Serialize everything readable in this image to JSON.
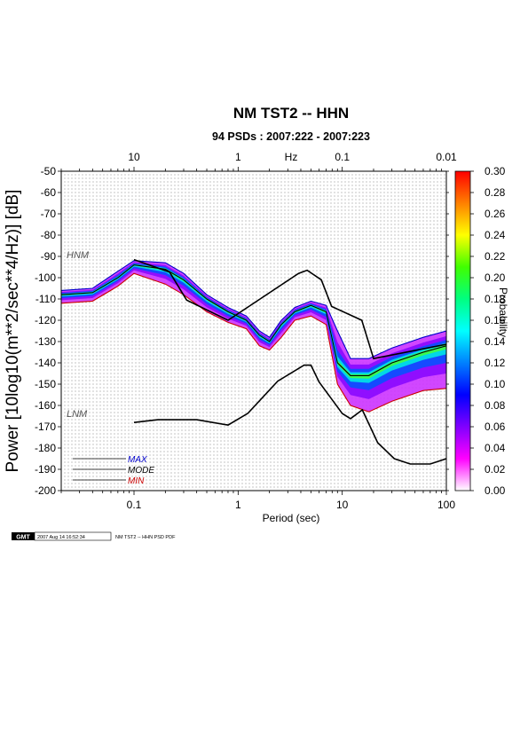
{
  "chart_data": {
    "type": "heatmap",
    "title": "NM TST2 -- HHN",
    "subtitle": "94 PSDs : 2007:222 - 2007:223",
    "xlabel": "Period (sec)",
    "x2label": "Hz",
    "ylabel": "Power [10log10(m**2/sec**4/Hz)] [dB]",
    "x_scale": "log",
    "xlim": [
      0.02,
      100
    ],
    "ylim": [
      -200,
      -50
    ],
    "x_ticks": [
      0.1,
      1,
      10,
      100
    ],
    "x_tick_labels": [
      "0.1",
      "1",
      "10",
      "100"
    ],
    "x2_ticks": [
      10,
      1,
      0.1,
      0.01
    ],
    "x2_tick_labels": [
      "10",
      "1",
      "0.1",
      "0.01"
    ],
    "y_ticks": [
      -50,
      -60,
      -70,
      -80,
      -90,
      -100,
      -110,
      -120,
      -130,
      -140,
      -150,
      -160,
      -170,
      -180,
      -190,
      -200
    ],
    "y_tick_labels": [
      "-50",
      "-60",
      "-70",
      "-80",
      "-90",
      "-100",
      "-110",
      "-120",
      "-130",
      "-140",
      "-150",
      "-160",
      "-170",
      "-180",
      "-190",
      "-200"
    ],
    "grid": true,
    "colorbar": {
      "label": "Probability",
      "range": [
        0,
        0.3
      ],
      "ticks": [
        0.0,
        0.02,
        0.04,
        0.06,
        0.08,
        0.1,
        0.12,
        0.14,
        0.16,
        0.18,
        0.2,
        0.22,
        0.24,
        0.26,
        0.28,
        0.3
      ],
      "tick_labels": [
        "0.00",
        "0.02",
        "0.04",
        "0.06",
        "0.08",
        "0.10",
        "0.12",
        "0.14",
        "0.16",
        "0.18",
        "0.20",
        "0.22",
        "0.24",
        "0.26",
        "0.28",
        "0.30"
      ],
      "colors": [
        "#ffffff",
        "#ff00ff",
        "#8000ff",
        "#0000ff",
        "#0080ff",
        "#00ffff",
        "#00ff80",
        "#40ff00",
        "#ffff00",
        "#ff8000",
        "#ff0000"
      ]
    },
    "model_curves": [
      {
        "name": "HNM",
        "points": [
          [
            0.1,
            -91.5
          ],
          [
            0.22,
            -97.4
          ],
          [
            0.32,
            -110.5
          ],
          [
            0.8,
            -120
          ],
          [
            3.8,
            -98
          ],
          [
            4.6,
            -96.5
          ],
          [
            6.3,
            -101
          ],
          [
            7.9,
            -113.5
          ],
          [
            15.4,
            -120
          ],
          [
            20,
            -138
          ],
          [
            354,
            -126
          ]
        ]
      },
      {
        "name": "LNM",
        "points": [
          [
            0.1,
            -168
          ],
          [
            0.17,
            -166.7
          ],
          [
            0.4,
            -166.7
          ],
          [
            0.8,
            -169.2
          ],
          [
            1.24,
            -163.7
          ],
          [
            2.4,
            -148.6
          ],
          [
            4.3,
            -141.1
          ],
          [
            5,
            -141.1
          ],
          [
            6,
            -149
          ],
          [
            10,
            -163.8
          ],
          [
            12,
            -166.2
          ],
          [
            15.6,
            -162.1
          ],
          [
            21.9,
            -177.5
          ],
          [
            31.6,
            -185
          ],
          [
            45,
            -187.5
          ],
          [
            70,
            -187.5
          ],
          [
            100,
            -185
          ]
        ]
      }
    ],
    "statistics": [
      {
        "name": "MAX",
        "color": "#0000cc",
        "points": [
          [
            0.02,
            -106
          ],
          [
            0.04,
            -105
          ],
          [
            0.07,
            -97
          ],
          [
            0.1,
            -92
          ],
          [
            0.2,
            -93
          ],
          [
            0.3,
            -98
          ],
          [
            0.5,
            -108
          ],
          [
            0.8,
            -114
          ],
          [
            1.2,
            -118
          ],
          [
            1.6,
            -125
          ],
          [
            2,
            -128
          ],
          [
            2.6,
            -120
          ],
          [
            3.5,
            -114
          ],
          [
            5,
            -111
          ],
          [
            7,
            -113
          ],
          [
            9,
            -125
          ],
          [
            12,
            -138
          ],
          [
            18,
            -138
          ],
          [
            30,
            -133
          ],
          [
            60,
            -128
          ],
          [
            100,
            -125
          ]
        ]
      },
      {
        "name": "MODE",
        "color": "#000000",
        "points": [
          [
            0.02,
            -108
          ],
          [
            0.04,
            -107
          ],
          [
            0.07,
            -100
          ],
          [
            0.1,
            -94
          ],
          [
            0.2,
            -96
          ],
          [
            0.3,
            -101
          ],
          [
            0.5,
            -110
          ],
          [
            0.8,
            -116
          ],
          [
            1.2,
            -120
          ],
          [
            1.6,
            -127
          ],
          [
            2,
            -130
          ],
          [
            2.6,
            -122
          ],
          [
            3.5,
            -116
          ],
          [
            5,
            -113
          ],
          [
            7,
            -116
          ],
          [
            9,
            -140
          ],
          [
            12,
            -146
          ],
          [
            18,
            -146
          ],
          [
            30,
            -140
          ],
          [
            60,
            -135
          ],
          [
            100,
            -132
          ]
        ]
      },
      {
        "name": "MIN",
        "color": "#cc0000",
        "points": [
          [
            0.02,
            -112
          ],
          [
            0.04,
            -111
          ],
          [
            0.07,
            -104
          ],
          [
            0.1,
            -98
          ],
          [
            0.2,
            -103
          ],
          [
            0.3,
            -108
          ],
          [
            0.5,
            -116
          ],
          [
            0.8,
            -121
          ],
          [
            1.2,
            -124
          ],
          [
            1.6,
            -132
          ],
          [
            2,
            -134
          ],
          [
            2.6,
            -128
          ],
          [
            3.5,
            -120
          ],
          [
            5,
            -118
          ],
          [
            7,
            -122
          ],
          [
            9,
            -150
          ],
          [
            12,
            -160
          ],
          [
            18,
            -163
          ],
          [
            30,
            -158
          ],
          [
            60,
            -153
          ],
          [
            100,
            -152
          ]
        ]
      }
    ],
    "legend": {
      "placement": "bottom-left",
      "entries": [
        {
          "label": "MAX",
          "color": "#0000cc"
        },
        {
          "label": "MODE",
          "color": "#000000"
        },
        {
          "label": "MIN",
          "color": "#cc0000"
        }
      ]
    }
  },
  "footer": {
    "logo": "GMT",
    "timestamp": "2007 Aug 14 16:52:34",
    "caption": "NM TST2 -- HHN PSD PDF"
  }
}
